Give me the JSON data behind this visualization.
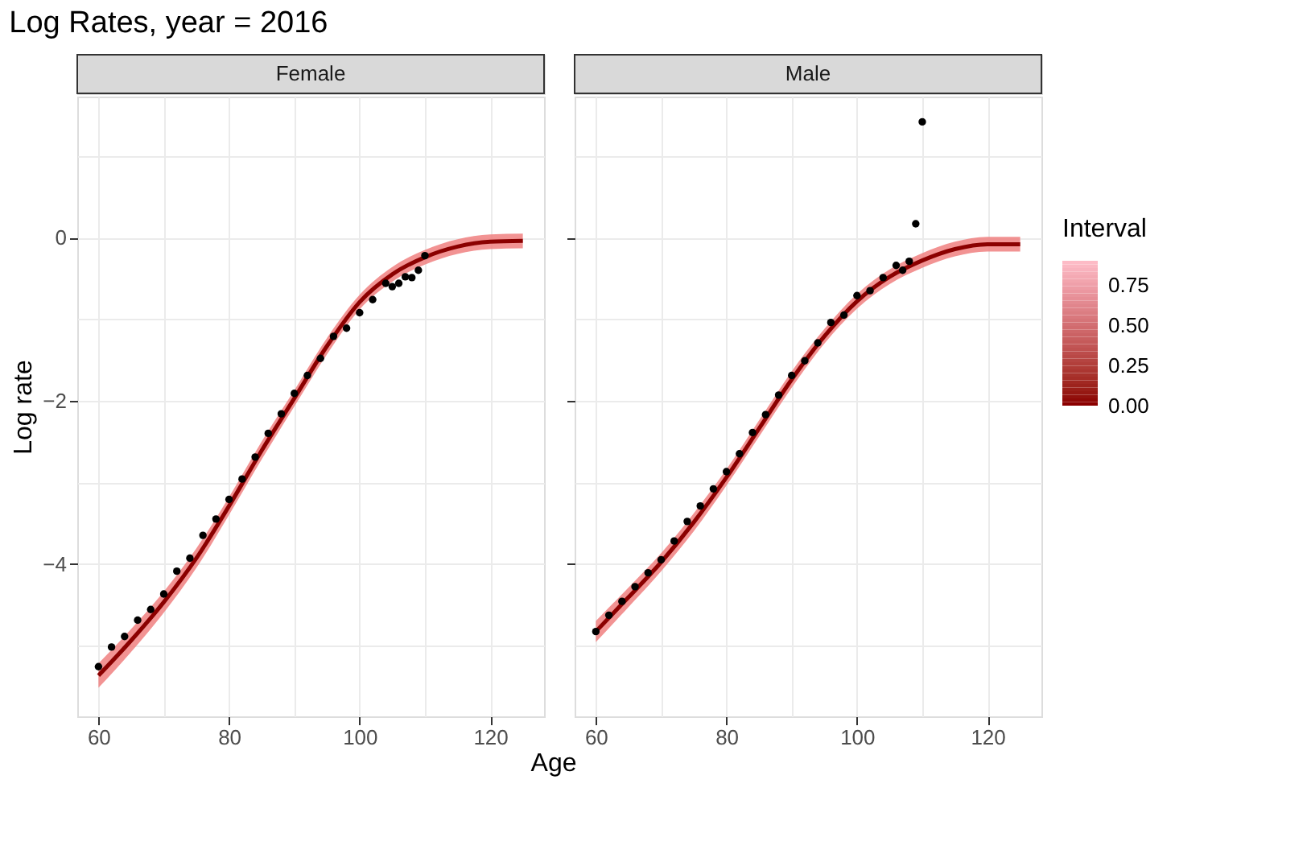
{
  "chart_data": [
    {
      "type": "scatter",
      "title": "Log Rates, year = 2016",
      "subtitle": "Female",
      "xlabel": "Age",
      "ylabel": "Log rate",
      "clabel": "Interval",
      "clim": [
        0,
        0.9
      ],
      "cticks": [
        {
          "value": 0,
          "label": "0.00"
        },
        0.25,
        {
          "value": 0.5,
          "label": "0.50"
        },
        0.75
      ],
      "grid": true,
      "xlim": [
        56.75,
        128.25
      ],
      "xticks": [
        60,
        {
          "value": 70,
          "label": null
        },
        80,
        {
          "value": 90,
          "label": null
        },
        100,
        {
          "value": 110,
          "label": null
        },
        120
      ],
      "ylim": [
        -5.87,
        1.73
      ],
      "yticks": [
        {
          "value": -5,
          "label": null
        },
        -4,
        {
          "value": -3,
          "label": null
        },
        -2,
        {
          "value": -1,
          "label": null
        },
        0,
        {
          "value": 1,
          "label": null
        }
      ],
      "series": [
        {
          "type": "line",
          "color": "#8b0000",
          "x": [
            60,
            65,
            70,
            75,
            80,
            85,
            90,
            95,
            100,
            105,
            110,
            115,
            120,
            125
          ],
          "values": [
            -5.37,
            -4.94,
            -4.47,
            -3.93,
            -3.29,
            -2.61,
            -1.97,
            -1.33,
            -0.79,
            -0.45,
            -0.24,
            -0.11,
            -0.05,
            -0.04
          ],
          "lower": [
            -5.52,
            -5.08,
            -4.6,
            -4.05,
            -3.4,
            -2.72,
            -2.07,
            -1.43,
            -0.88,
            -0.54,
            -0.33,
            -0.2,
            -0.14,
            -0.13
          ],
          "upper": [
            -5.22,
            -4.8,
            -4.34,
            -3.81,
            -3.18,
            -2.5,
            -1.87,
            -1.23,
            -0.7,
            -0.36,
            -0.15,
            -0.02,
            0.04,
            0.05
          ]
        },
        {
          "marker": "circle",
          "color": "#000000",
          "x": [
            60,
            62,
            64,
            66,
            68,
            70,
            72,
            74,
            76,
            78,
            80,
            82,
            84,
            86,
            88,
            90,
            92,
            94,
            96,
            98,
            100,
            102,
            104,
            105,
            106,
            107,
            108,
            109,
            110
          ],
          "values": [
            -5.26,
            -5.02,
            -4.89,
            -4.69,
            -4.56,
            -4.37,
            -4.09,
            -3.93,
            -3.65,
            -3.45,
            -3.21,
            -2.96,
            -2.69,
            -2.4,
            -2.16,
            -1.91,
            -1.69,
            -1.48,
            -1.21,
            -1.11,
            -0.92,
            -0.76,
            -0.56,
            -0.6,
            -0.56,
            -0.48,
            -0.49,
            -0.4,
            -0.22
          ]
        }
      ]
    },
    {
      "type": "scatter",
      "subtitle": "Male",
      "tick_labels": "x",
      "grid": true,
      "xlim": [
        56.75,
        128.25
      ],
      "xticks": [
        60,
        {
          "value": 70,
          "label": null
        },
        80,
        {
          "value": 90,
          "label": null
        },
        100,
        {
          "value": 110,
          "label": null
        },
        120
      ],
      "ylim": [
        -5.87,
        1.73
      ],
      "yticks": [
        {
          "value": -5,
          "label": null
        },
        -4,
        {
          "value": -3,
          "label": null
        },
        -2,
        {
          "value": -1,
          "label": null
        },
        0,
        {
          "value": 1,
          "label": null
        }
      ],
      "series": [
        {
          "type": "line",
          "color": "#8b0000",
          "x": [
            60,
            65,
            70,
            75,
            80,
            85,
            90,
            95,
            100,
            105,
            110,
            115,
            120,
            125
          ],
          "values": [
            -4.83,
            -4.41,
            -3.98,
            -3.49,
            -2.94,
            -2.34,
            -1.74,
            -1.21,
            -0.78,
            -0.48,
            -0.28,
            -0.14,
            -0.08,
            -0.08
          ],
          "lower": [
            -4.96,
            -4.53,
            -4.09,
            -3.6,
            -3.04,
            -2.44,
            -1.84,
            -1.3,
            -0.87,
            -0.57,
            -0.37,
            -0.23,
            -0.17,
            -0.17
          ],
          "upper": [
            -4.7,
            -4.29,
            -3.87,
            -3.38,
            -2.84,
            -2.24,
            -1.64,
            -1.12,
            -0.69,
            -0.39,
            -0.19,
            -0.05,
            0.01,
            0.01
          ]
        },
        {
          "marker": "circle",
          "color": "#000000",
          "x": [
            60,
            62,
            64,
            66,
            68,
            70,
            72,
            74,
            76,
            78,
            80,
            82,
            84,
            86,
            88,
            90,
            92,
            94,
            96,
            98,
            100,
            102,
            104,
            106,
            107,
            108,
            109,
            110
          ],
          "values": [
            -4.83,
            -4.63,
            -4.46,
            -4.28,
            -4.11,
            -3.95,
            -3.72,
            -3.48,
            -3.29,
            -3.08,
            -2.87,
            -2.65,
            -2.39,
            -2.17,
            -1.93,
            -1.69,
            -1.51,
            -1.29,
            -1.04,
            -0.95,
            -0.71,
            -0.65,
            -0.49,
            -0.34,
            -0.4,
            -0.29,
            0.17,
            1.42
          ]
        }
      ]
    }
  ]
}
